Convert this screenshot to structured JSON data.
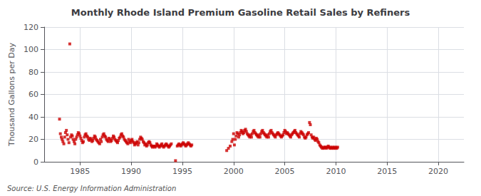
{
  "chart_data": {
    "type": "scatter",
    "title": "Monthly Rhode Island Premium Gasoline Retail Sales by Refiners",
    "ylabel": "Thousand Gallons per Day",
    "annotation": "Source: U.S. Energy Information Administration",
    "color": "#cc0000",
    "marker": "square",
    "grid": true,
    "xlim": [
      1981.5,
      2022.5
    ],
    "ylim": [
      0,
      120
    ],
    "xticks": [
      1985,
      1990,
      1995,
      2000,
      2005,
      2010,
      2015,
      2020
    ],
    "yticks": [
      0,
      20,
      40,
      60,
      80,
      100,
      120
    ],
    "x": [
      1983.0,
      1983.08,
      1983.17,
      1983.25,
      1983.33,
      1983.42,
      1983.5,
      1983.58,
      1983.67,
      1983.75,
      1983.83,
      1983.92,
      1984.0,
      1984.08,
      1984.17,
      1984.25,
      1984.33,
      1984.42,
      1984.5,
      1984.58,
      1984.67,
      1984.75,
      1984.83,
      1984.92,
      1985.0,
      1985.08,
      1985.17,
      1985.25,
      1985.33,
      1985.42,
      1985.5,
      1985.58,
      1985.67,
      1985.75,
      1985.83,
      1985.92,
      1986.0,
      1986.08,
      1986.17,
      1986.25,
      1986.33,
      1986.42,
      1986.5,
      1986.58,
      1986.67,
      1986.75,
      1986.83,
      1986.92,
      1987.0,
      1987.08,
      1987.17,
      1987.25,
      1987.33,
      1987.42,
      1987.5,
      1987.58,
      1987.67,
      1987.75,
      1987.83,
      1987.92,
      1988.0,
      1988.08,
      1988.17,
      1988.25,
      1988.33,
      1988.42,
      1988.5,
      1988.58,
      1988.67,
      1988.75,
      1988.83,
      1988.92,
      1989.0,
      1989.08,
      1989.17,
      1989.25,
      1989.33,
      1989.42,
      1989.5,
      1989.58,
      1989.67,
      1989.75,
      1989.83,
      1989.92,
      1990.0,
      1990.08,
      1990.17,
      1990.25,
      1990.33,
      1990.42,
      1990.5,
      1990.58,
      1990.67,
      1990.75,
      1990.83,
      1990.92,
      1991.0,
      1991.08,
      1991.17,
      1991.25,
      1991.33,
      1991.42,
      1991.5,
      1991.58,
      1991.67,
      1991.75,
      1991.83,
      1991.92,
      1992.0,
      1992.08,
      1992.17,
      1992.25,
      1992.33,
      1992.42,
      1992.5,
      1992.58,
      1992.67,
      1992.75,
      1992.83,
      1992.92,
      1993.0,
      1993.08,
      1993.17,
      1993.25,
      1993.33,
      1993.42,
      1993.5,
      1993.58,
      1993.67,
      1993.75,
      1993.83,
      1993.92,
      1994.33,
      1994.5,
      1994.58,
      1994.67,
      1994.75,
      1994.83,
      1994.92,
      1995.0,
      1995.08,
      1995.17,
      1995.25,
      1995.33,
      1995.42,
      1995.5,
      1995.58,
      1995.67,
      1995.75,
      1995.83,
      1995.92,
      1999.33,
      1999.5,
      1999.67,
      1999.83,
      1999.92,
      2000.0,
      2000.08,
      2000.17,
      2000.25,
      2000.33,
      2000.42,
      2000.5,
      2000.58,
      2000.67,
      2000.75,
      2000.83,
      2000.92,
      2001.0,
      2001.08,
      2001.17,
      2001.25,
      2001.33,
      2001.42,
      2001.5,
      2001.58,
      2001.67,
      2001.75,
      2001.83,
      2001.92,
      2002.0,
      2002.08,
      2002.17,
      2002.25,
      2002.33,
      2002.42,
      2002.5,
      2002.58,
      2002.67,
      2002.75,
      2002.83,
      2002.92,
      2003.0,
      2003.08,
      2003.17,
      2003.25,
      2003.33,
      2003.42,
      2003.5,
      2003.58,
      2003.67,
      2003.75,
      2003.83,
      2003.92,
      2004.0,
      2004.08,
      2004.17,
      2004.25,
      2004.33,
      2004.42,
      2004.5,
      2004.58,
      2004.67,
      2004.75,
      2004.83,
      2004.92,
      2005.0,
      2005.08,
      2005.17,
      2005.25,
      2005.33,
      2005.42,
      2005.5,
      2005.58,
      2005.67,
      2005.75,
      2005.83,
      2005.92,
      2006.0,
      2006.08,
      2006.17,
      2006.25,
      2006.33,
      2006.42,
      2006.5,
      2006.58,
      2006.67,
      2006.75,
      2006.83,
      2006.92,
      2007.0,
      2007.08,
      2007.17,
      2007.25,
      2007.33,
      2007.42,
      2007.5,
      2007.58,
      2007.67,
      2007.75,
      2007.83,
      2007.92,
      2008.0,
      2008.08,
      2008.17,
      2008.25,
      2008.33,
      2008.42,
      2008.5,
      2008.58,
      2008.67,
      2008.75,
      2008.83,
      2008.92,
      2009.0,
      2009.08,
      2009.17,
      2009.25,
      2009.33,
      2009.42,
      2009.5,
      2009.58,
      2009.67,
      2009.75,
      2009.83,
      2009.92,
      2010.0,
      2010.08,
      2010.17
    ],
    "values": [
      38.0,
      25.0,
      22.0,
      20.0,
      18.0,
      16.0,
      22.0,
      26.0,
      28.0,
      24.0,
      20.0,
      17.0,
      105.0,
      22.0,
      24.0,
      23.0,
      20.0,
      18.0,
      16.0,
      20.0,
      22.0,
      24.0,
      26.0,
      25.0,
      23.0,
      21.0,
      19.0,
      17.0,
      18.0,
      22.0,
      24.0,
      25.0,
      23.0,
      22.0,
      20.0,
      19.0,
      21.0,
      20.0,
      18.0,
      19.0,
      21.0,
      23.0,
      22.0,
      20.0,
      19.0,
      18.0,
      17.0,
      16.0,
      20.0,
      18.0,
      22.0,
      24.0,
      25.0,
      23.0,
      22.0,
      20.0,
      19.0,
      18.0,
      21.0,
      20.0,
      18.0,
      19.0,
      21.0,
      23.0,
      22.0,
      20.0,
      19.0,
      18.0,
      17.0,
      19.0,
      21.0,
      22.0,
      24.0,
      25.0,
      23.0,
      22.0,
      20.0,
      19.0,
      18.0,
      17.0,
      16.0,
      20.0,
      18.0,
      17.0,
      19.0,
      20.0,
      18.0,
      17.0,
      15.0,
      16.0,
      17.0,
      18.0,
      15.0,
      17.0,
      20.0,
      22.0,
      21.0,
      20.0,
      18.0,
      17.0,
      15.0,
      16.0,
      14.0,
      15.0,
      17.0,
      18.0,
      17.0,
      15.0,
      14.0,
      13.0,
      14.0,
      14.0,
      13.0,
      14.0,
      16.0,
      15.0,
      14.0,
      13.0,
      14.0,
      15.0,
      16.0,
      14.0,
      13.0,
      14.0,
      15.0,
      16.0,
      15.0,
      14.0,
      13.0,
      14.0,
      15.0,
      16.0,
      1.0,
      14.0,
      15.0,
      16.0,
      15.0,
      14.0,
      15.0,
      16.0,
      17.0,
      16.0,
      15.0,
      14.0,
      15.0,
      16.0,
      17.0,
      16.0,
      15.0,
      14.0,
      15.0,
      10.0,
      12.0,
      14.0,
      18.0,
      20.0,
      25.0,
      15.0,
      20.0,
      23.0,
      26.0,
      25.0,
      22.0,
      24.0,
      26.0,
      28.0,
      27.0,
      25.0,
      26.0,
      28.0,
      29.0,
      27.0,
      25.0,
      24.0,
      23.0,
      22.0,
      24.0,
      22.0,
      25.0,
      27.0,
      28.0,
      26.0,
      25.0,
      24.0,
      23.0,
      22.0,
      24.0,
      22.0,
      25.0,
      27.0,
      28.0,
      26.0,
      25.0,
      24.0,
      23.0,
      22.0,
      24.0,
      22.0,
      25.0,
      27.0,
      28.0,
      26.0,
      25.0,
      24.0,
      23.0,
      22.0,
      24.0,
      25.0,
      26.0,
      25.0,
      24.0,
      23.0,
      22.0,
      23.0,
      24.0,
      26.0,
      28.0,
      27.0,
      25.0,
      26.0,
      25.0,
      24.0,
      23.0,
      22.0,
      24.0,
      25.0,
      26.0,
      27.0,
      28.0,
      26.0,
      25.0,
      24.0,
      23.0,
      22.0,
      25.0,
      27.0,
      26.0,
      25.0,
      24.0,
      22.0,
      21.0,
      22.0,
      24.0,
      25.0,
      26.0,
      35.0,
      33.0,
      24.0,
      22.0,
      21.0,
      22.0,
      20.0,
      19.0,
      21.0,
      20.0,
      18.0,
      17.0,
      15.0,
      14.0,
      13.0,
      12.0,
      13.0,
      12.0,
      13.0,
      13.0,
      12.0,
      13.0,
      14.0,
      13.0,
      12.0,
      13.0,
      12.0,
      13.0,
      12.0,
      13.0,
      12.0,
      13.0,
      12.0,
      13.0
    ]
  }
}
